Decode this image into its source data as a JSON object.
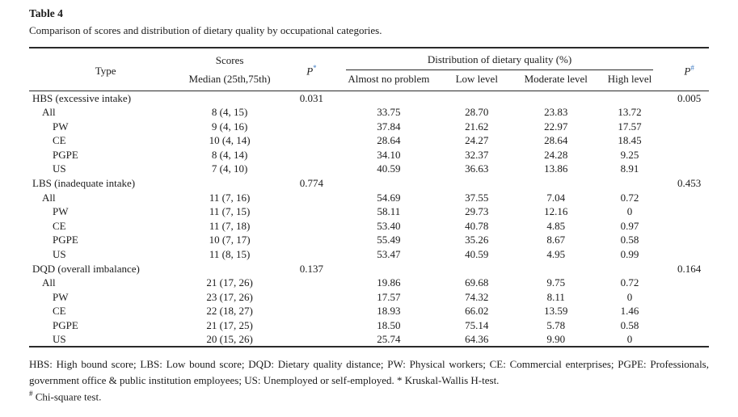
{
  "title": "Table 4",
  "caption": "Comparison of scores and distribution of dietary quality by occupational categories.",
  "colors": {
    "text": "#1b1b1b",
    "rule": "#2a2a2a",
    "superscript_accent_blue": "#3f7cc4"
  },
  "table": {
    "headers": {
      "type": "Type",
      "scores_group": "Scores",
      "median": "Median (25th,75th)",
      "p_star": {
        "base": "P",
        "sup": "*"
      },
      "dist_group": "Distribution of dietary quality (%)",
      "almost": "Almost no problem",
      "low": "Low level",
      "moderate": "Moderate level",
      "high": "High level",
      "p_hash": {
        "base": "P",
        "sup": "#"
      }
    },
    "rows": [
      {
        "indent": 0,
        "type": "HBS (excessive intake)",
        "median": "",
        "p1": "0.031",
        "almost": "",
        "low": "",
        "moderate": "",
        "high": "",
        "p2": "0.005"
      },
      {
        "indent": 1,
        "type": "All",
        "median": "8 (4, 15)",
        "p1": "",
        "almost": "33.75",
        "low": "28.70",
        "moderate": "23.83",
        "high": "13.72",
        "p2": ""
      },
      {
        "indent": 2,
        "type": "PW",
        "median": "9 (4, 16)",
        "p1": "",
        "almost": "37.84",
        "low": "21.62",
        "moderate": "22.97",
        "high": "17.57",
        "p2": ""
      },
      {
        "indent": 2,
        "type": "CE",
        "median": "10 (4, 14)",
        "p1": "",
        "almost": "28.64",
        "low": "24.27",
        "moderate": "28.64",
        "high": "18.45",
        "p2": ""
      },
      {
        "indent": 2,
        "type": "PGPE",
        "median": "8 (4, 14)",
        "p1": "",
        "almost": "34.10",
        "low": "32.37",
        "moderate": "24.28",
        "high": "9.25",
        "p2": ""
      },
      {
        "indent": 2,
        "type": "US",
        "median": "7 (4, 10)",
        "p1": "",
        "almost": "40.59",
        "low": "36.63",
        "moderate": "13.86",
        "high": "8.91",
        "p2": ""
      },
      {
        "indent": 0,
        "type": "LBS (inadequate intake)",
        "median": "",
        "p1": "0.774",
        "almost": "",
        "low": "",
        "moderate": "",
        "high": "",
        "p2": "0.453"
      },
      {
        "indent": 1,
        "type": "All",
        "median": "11 (7, 16)",
        "p1": "",
        "almost": "54.69",
        "low": "37.55",
        "moderate": "7.04",
        "high": "0.72",
        "p2": ""
      },
      {
        "indent": 2,
        "type": "PW",
        "median": "11 (7, 15)",
        "p1": "",
        "almost": "58.11",
        "low": "29.73",
        "moderate": "12.16",
        "high": "0",
        "p2": ""
      },
      {
        "indent": 2,
        "type": "CE",
        "median": "11 (7, 18)",
        "p1": "",
        "almost": "53.40",
        "low": "40.78",
        "moderate": "4.85",
        "high": "0.97",
        "p2": ""
      },
      {
        "indent": 2,
        "type": "PGPE",
        "median": "10 (7, 17)",
        "p1": "",
        "almost": "55.49",
        "low": "35.26",
        "moderate": "8.67",
        "high": "0.58",
        "p2": ""
      },
      {
        "indent": 2,
        "type": "US",
        "median": "11 (8, 15)",
        "p1": "",
        "almost": "53.47",
        "low": "40.59",
        "moderate": "4.95",
        "high": "0.99",
        "p2": ""
      },
      {
        "indent": 0,
        "type": "DQD (overall imbalance)",
        "median": "",
        "p1": "0.137",
        "almost": "",
        "low": "",
        "moderate": "",
        "high": "",
        "p2": "0.164"
      },
      {
        "indent": 1,
        "type": "All",
        "median": "21 (17, 26)",
        "p1": "",
        "almost": "19.86",
        "low": "69.68",
        "moderate": "9.75",
        "high": "0.72",
        "p2": ""
      },
      {
        "indent": 2,
        "type": "PW",
        "median": "23 (17, 26)",
        "p1": "",
        "almost": "17.57",
        "low": "74.32",
        "moderate": "8.11",
        "high": "0",
        "p2": ""
      },
      {
        "indent": 2,
        "type": "CE",
        "median": "22 (18, 27)",
        "p1": "",
        "almost": "18.93",
        "low": "66.02",
        "moderate": "13.59",
        "high": "1.46",
        "p2": ""
      },
      {
        "indent": 2,
        "type": "PGPE",
        "median": "21 (17, 25)",
        "p1": "",
        "almost": "18.50",
        "low": "75.14",
        "moderate": "5.78",
        "high": "0.58",
        "p2": ""
      },
      {
        "indent": 2,
        "type": "US",
        "median": "20 (15, 26)",
        "p1": "",
        "almost": "25.74",
        "low": "64.36",
        "moderate": "9.90",
        "high": "0",
        "p2": ""
      }
    ]
  },
  "footnotes": {
    "line1": "HBS: High bound score; LBS: Low bound score; DQD: Dietary quality distance; PW: Physical workers; CE: Commercial enterprises; PGPE: Professionals, government office & public institution employees; US: Unemployed or self-employed. * Kruskal-Wallis H-test.",
    "line2_sup": "#",
    "line2": "Chi-square test."
  }
}
